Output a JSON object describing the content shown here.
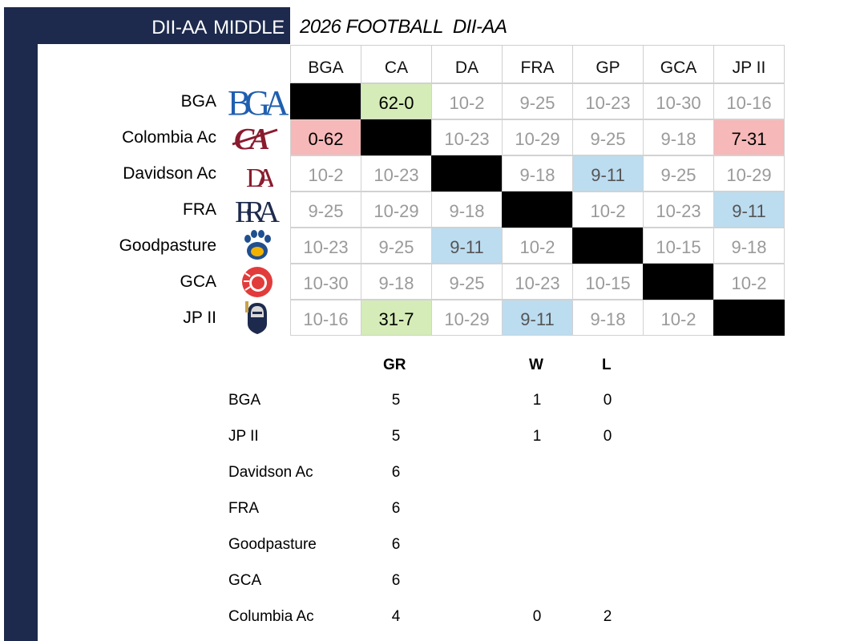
{
  "header": {
    "division_label": "DII-AA  MIDDLE",
    "title": "2026 FOOTBALL  DII-AA"
  },
  "columns": [
    "BGA",
    "CA",
    "DA",
    "FRA",
    "GP",
    "GCA",
    "JP II"
  ],
  "rows": [
    {
      "label": "BGA",
      "logo": "bga-logo",
      "cells": [
        {
          "text": "",
          "style": "black"
        },
        {
          "text": "62-0",
          "style": "green"
        },
        {
          "text": "10-2",
          "style": "plain"
        },
        {
          "text": "9-25",
          "style": "plain"
        },
        {
          "text": "10-23",
          "style": "plain"
        },
        {
          "text": "10-30",
          "style": "plain"
        },
        {
          "text": "10-16",
          "style": "plain"
        }
      ]
    },
    {
      "label": "Colombia Ac",
      "logo": "ca-logo",
      "cells": [
        {
          "text": "0-62",
          "style": "red"
        },
        {
          "text": "",
          "style": "black"
        },
        {
          "text": "10-23",
          "style": "plain"
        },
        {
          "text": "10-29",
          "style": "plain"
        },
        {
          "text": "9-25",
          "style": "plain"
        },
        {
          "text": "9-18",
          "style": "plain"
        },
        {
          "text": "7-31",
          "style": "red"
        }
      ]
    },
    {
      "label": "Davidson Ac",
      "logo": "da-logo",
      "cells": [
        {
          "text": "10-2",
          "style": "plain"
        },
        {
          "text": "10-23",
          "style": "plain"
        },
        {
          "text": "",
          "style": "black"
        },
        {
          "text": "9-18",
          "style": "plain"
        },
        {
          "text": "9-11",
          "style": "blue"
        },
        {
          "text": "9-25",
          "style": "plain"
        },
        {
          "text": "10-29",
          "style": "plain"
        }
      ]
    },
    {
      "label": "FRA",
      "logo": "fra-logo",
      "cells": [
        {
          "text": "9-25",
          "style": "plain"
        },
        {
          "text": "10-29",
          "style": "plain"
        },
        {
          "text": "9-18",
          "style": "plain"
        },
        {
          "text": "",
          "style": "black"
        },
        {
          "text": "10-2",
          "style": "plain"
        },
        {
          "text": "10-23",
          "style": "plain"
        },
        {
          "text": "9-11",
          "style": "blue"
        }
      ]
    },
    {
      "label": "Goodpasture",
      "logo": "paw-logo",
      "cells": [
        {
          "text": "10-23",
          "style": "plain"
        },
        {
          "text": "9-25",
          "style": "plain"
        },
        {
          "text": "9-11",
          "style": "blue"
        },
        {
          "text": "10-2",
          "style": "plain"
        },
        {
          "text": "",
          "style": "black"
        },
        {
          "text": "10-15",
          "style": "plain"
        },
        {
          "text": "9-18",
          "style": "plain"
        }
      ]
    },
    {
      "label": "GCA",
      "logo": "lion-logo",
      "cells": [
        {
          "text": "10-30",
          "style": "plain"
        },
        {
          "text": "9-18",
          "style": "plain"
        },
        {
          "text": "9-25",
          "style": "plain"
        },
        {
          "text": "10-23",
          "style": "plain"
        },
        {
          "text": "10-15",
          "style": "plain"
        },
        {
          "text": "",
          "style": "black"
        },
        {
          "text": "10-2",
          "style": "plain"
        }
      ]
    },
    {
      "label": "JP II",
      "logo": "knight-logo",
      "cells": [
        {
          "text": "10-16",
          "style": "plain"
        },
        {
          "text": "31-7",
          "style": "green"
        },
        {
          "text": "10-29",
          "style": "plain"
        },
        {
          "text": "9-11",
          "style": "blue"
        },
        {
          "text": "9-18",
          "style": "plain"
        },
        {
          "text": "10-2",
          "style": "plain"
        },
        {
          "text": "",
          "style": "black"
        }
      ]
    }
  ],
  "standings": {
    "headers": {
      "gr": "GR",
      "w": "W",
      "l": "L"
    },
    "rows": [
      {
        "team": "BGA",
        "gr": "5",
        "w": "1",
        "l": "0"
      },
      {
        "team": "JP II",
        "gr": "5",
        "w": "1",
        "l": "0"
      },
      {
        "team": "Davidson Ac",
        "gr": "6",
        "w": "",
        "l": ""
      },
      {
        "team": "FRA",
        "gr": "6",
        "w": "",
        "l": ""
      },
      {
        "team": "Goodpasture",
        "gr": "6",
        "w": "",
        "l": ""
      },
      {
        "team": "GCA",
        "gr": "6",
        "w": "",
        "l": ""
      },
      {
        "team": "Columbia Ac",
        "gr": "4",
        "w": "0",
        "l": "2"
      }
    ]
  },
  "colors": {
    "navy": "#1d2a4d",
    "win_green": "#d5ecb8",
    "loss_red": "#f6b8b8",
    "upcoming_blue": "#bcdcf0"
  },
  "logo_text": {
    "bga": "BGA",
    "ca": "CA",
    "da": "DA",
    "fra": "FRA"
  }
}
